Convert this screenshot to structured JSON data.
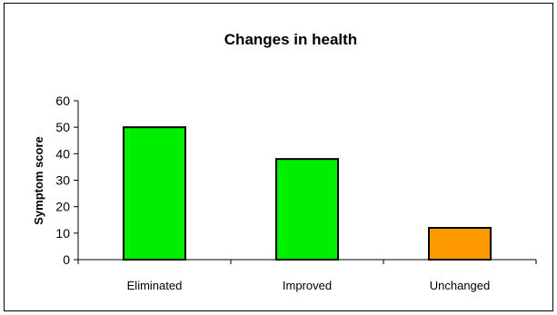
{
  "chart_data": {
    "type": "bar",
    "title": "Changes in health",
    "xlabel": "",
    "ylabel": "Symptom score",
    "categories": [
      "Eliminated",
      "Improved",
      "Unchanged"
    ],
    "values": [
      50,
      38,
      12
    ],
    "bar_colors": [
      "#00ee00",
      "#00ee00",
      "#ff9900"
    ],
    "ylim": [
      0,
      60
    ],
    "yticks": [
      0,
      10,
      20,
      30,
      40,
      50,
      60
    ],
    "grid": false,
    "legend": "none"
  }
}
